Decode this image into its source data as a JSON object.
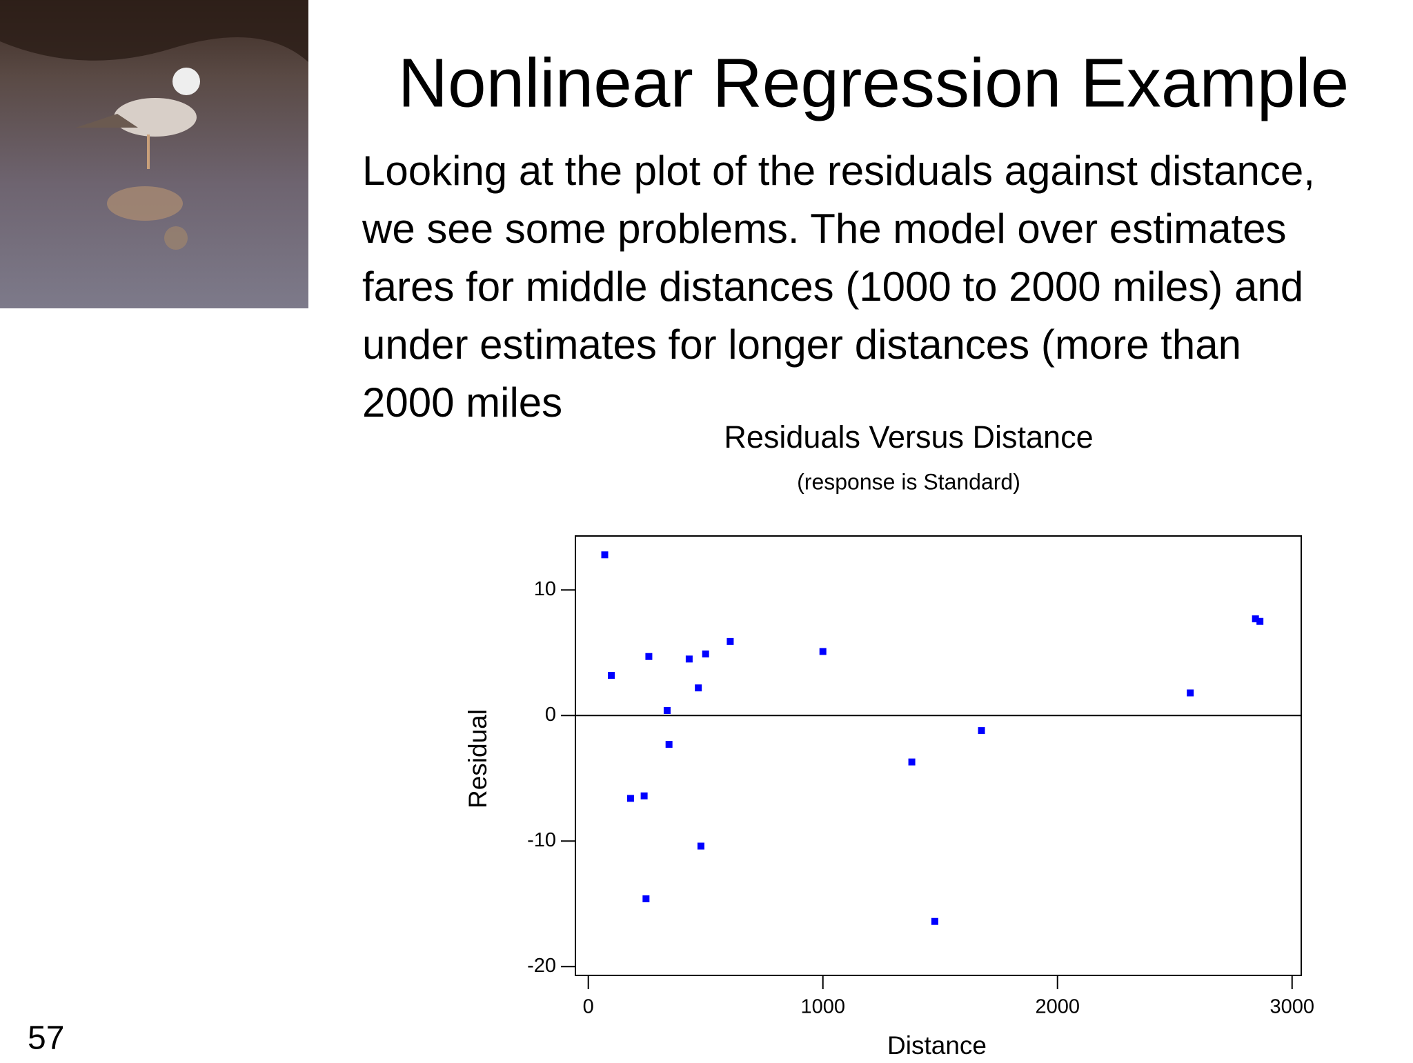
{
  "slide": {
    "title": "Nonlinear Regression Example",
    "body_lines": [
      "Looking at the plot of the residuals against distance,",
      "we see some problems. The model over estimates",
      "fares for middle distances (1000 to 2000 miles) and",
      "under estimates for longer distances (more than",
      "2000 miles"
    ],
    "page_number": "57"
  },
  "chart_data": {
    "type": "scatter",
    "title": "Residuals Versus Distance",
    "subtitle": "(response is Standard)",
    "x_label": "Distance",
    "y_label": "Residual",
    "series": [
      {
        "name": "Residual",
        "color": "#0000ff",
        "x": [
          70,
          98,
          180,
          238,
          246,
          258,
          336,
          344,
          430,
          469,
          480,
          500,
          605,
          1000,
          1379,
          1477,
          1676,
          2566,
          2844,
          2863
        ],
        "values": [
          12.8,
          3.2,
          -6.6,
          -6.4,
          -14.6,
          4.7,
          0.4,
          -2.3,
          4.5,
          2.2,
          -10.4,
          4.9,
          5.9,
          5.1,
          -3.7,
          -16.4,
          -1.2,
          1.8,
          7.7,
          7.5
        ]
      }
    ],
    "xlim": [
      -55,
      3039
    ],
    "ylim": [
      -20.7,
      14.3
    ],
    "xticks": [
      0,
      1000,
      2000,
      3000
    ],
    "yticks": [
      -20,
      -10,
      0,
      10
    ],
    "reference_line": 0,
    "grid": false
  }
}
